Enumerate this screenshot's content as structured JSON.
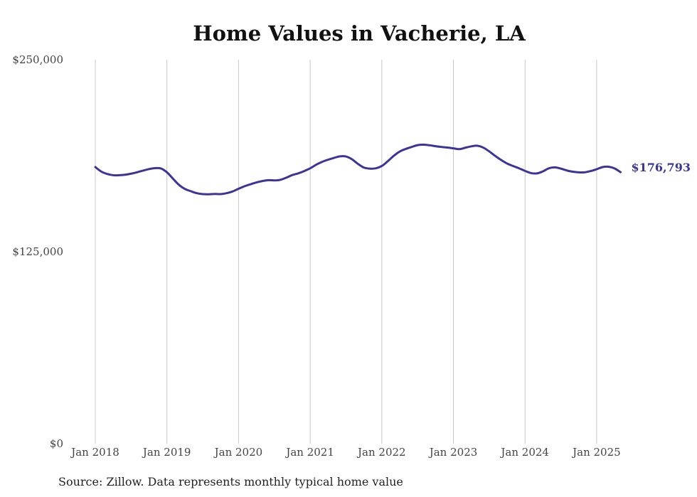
{
  "chart_data": {
    "type": "line",
    "title": "Home Values in Vacherie, LA",
    "source": "Source: Zillow. Data represents monthly typical home value",
    "ylim": [
      0,
      250000
    ],
    "y_ticks": [
      0,
      125000,
      250000
    ],
    "y_tick_labels": [
      "$0",
      "$125,000",
      "$250,000"
    ],
    "x_range": [
      "2018-01",
      "2025-05"
    ],
    "x_ticks": [
      "2018-01",
      "2019-01",
      "2020-01",
      "2021-01",
      "2022-01",
      "2023-01",
      "2024-01",
      "2025-01"
    ],
    "x_tick_labels": [
      "Jan 2018",
      "Jan 2019",
      "Jan 2020",
      "Jan 2021",
      "Jan 2022",
      "Jan 2023",
      "Jan 2024",
      "Jan 2025"
    ],
    "grid": {
      "vertical": true,
      "horizontal": false
    },
    "colors": {
      "line": "#3b3597",
      "grid": "#c8c8c8"
    },
    "end_label": "$176,793",
    "series": [
      {
        "x": [
          "2018-01",
          "2018-02",
          "2018-03",
          "2018-04",
          "2018-05",
          "2018-06",
          "2018-07",
          "2018-08",
          "2018-09",
          "2018-10",
          "2018-11",
          "2018-12",
          "2019-01",
          "2019-02",
          "2019-03",
          "2019-04",
          "2019-05",
          "2019-06",
          "2019-07",
          "2019-08",
          "2019-09",
          "2019-10",
          "2019-11",
          "2019-12",
          "2020-01",
          "2020-02",
          "2020-03",
          "2020-04",
          "2020-05",
          "2020-06",
          "2020-07",
          "2020-08",
          "2020-09",
          "2020-10",
          "2020-11",
          "2020-12",
          "2021-01",
          "2021-02",
          "2021-03",
          "2021-04",
          "2021-05",
          "2021-06",
          "2021-07",
          "2021-08",
          "2021-09",
          "2021-10",
          "2021-11",
          "2021-12",
          "2022-01",
          "2022-02",
          "2022-03",
          "2022-04",
          "2022-05",
          "2022-06",
          "2022-07",
          "2022-08",
          "2022-09",
          "2022-10",
          "2022-11",
          "2022-12",
          "2023-01",
          "2023-02",
          "2023-03",
          "2023-04",
          "2023-05",
          "2023-06",
          "2023-07",
          "2023-08",
          "2023-09",
          "2023-10",
          "2023-11",
          "2023-12",
          "2024-01",
          "2024-02",
          "2024-03",
          "2024-04",
          "2024-05",
          "2024-06",
          "2024-07",
          "2024-08",
          "2024-09",
          "2024-10",
          "2024-11",
          "2024-12",
          "2025-01",
          "2025-02",
          "2025-03",
          "2025-04",
          "2025-05"
        ],
        "values": [
          180100,
          177200,
          175600,
          174800,
          174800,
          175100,
          175800,
          176700,
          177800,
          178800,
          179400,
          179200,
          176700,
          172600,
          168600,
          165900,
          164400,
          163100,
          162500,
          162400,
          162600,
          162500,
          163100,
          164200,
          166000,
          167600,
          168900,
          170100,
          171000,
          171600,
          171400,
          171800,
          173200,
          174900,
          176000,
          177500,
          179300,
          181600,
          183500,
          184900,
          186100,
          187100,
          187000,
          185200,
          182200,
          179800,
          179100,
          179300,
          180800,
          183900,
          187400,
          190200,
          191900,
          193200,
          194400,
          194700,
          194300,
          193700,
          193200,
          192800,
          192300,
          191800,
          192700,
          193600,
          194000,
          192800,
          190300,
          187400,
          184700,
          182400,
          180800,
          179300,
          177600,
          176200,
          176000,
          177300,
          179300,
          179900,
          179100,
          177900,
          177100,
          176700,
          176700,
          177500,
          178700,
          180100,
          180300,
          179200,
          176793
        ]
      }
    ]
  }
}
